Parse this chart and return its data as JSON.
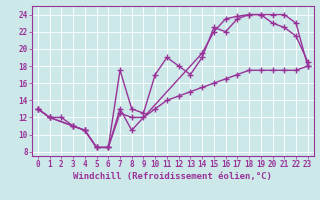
{
  "xlabel": "Windchill (Refroidissement éolien,°C)",
  "ylabel": "",
  "background_color": "#cce8e8",
  "line_color": "#993399",
  "xlim": [
    -0.5,
    23.5
  ],
  "ylim": [
    7.5,
    25
  ],
  "xticks": [
    0,
    1,
    2,
    3,
    4,
    5,
    6,
    7,
    8,
    9,
    10,
    11,
    12,
    13,
    14,
    15,
    16,
    17,
    18,
    19,
    20,
    21,
    22,
    23
  ],
  "yticks": [
    8,
    10,
    12,
    14,
    16,
    18,
    20,
    22,
    24
  ],
  "line1_x": [
    0,
    1,
    3,
    4,
    5,
    6,
    7,
    8,
    14,
    15,
    16,
    17,
    18,
    19,
    20,
    21,
    22,
    23
  ],
  "line1_y": [
    13,
    12,
    11,
    10.5,
    8.5,
    8.5,
    13,
    10.5,
    19.5,
    22,
    23.5,
    23.8,
    24,
    24,
    24,
    24,
    23,
    18
  ],
  "line2_x": [
    0,
    1,
    3,
    4,
    5,
    6,
    7,
    8,
    9,
    10,
    11,
    12,
    13,
    14,
    15,
    16,
    17,
    18,
    19,
    20,
    21,
    22,
    23
  ],
  "line2_y": [
    13,
    12,
    11,
    10.5,
    8.5,
    8.5,
    17.5,
    13,
    12.5,
    17,
    19,
    18,
    17,
    19,
    22.5,
    22,
    23.5,
    24,
    24,
    23,
    22.5,
    21.5,
    18.5
  ],
  "line3_x": [
    0,
    1,
    2,
    3,
    4,
    5,
    6,
    7,
    8,
    9,
    10,
    11,
    12,
    13,
    14,
    15,
    16,
    17,
    18,
    19,
    20,
    21,
    22,
    23
  ],
  "line3_y": [
    13,
    12,
    12,
    11,
    10.5,
    8.5,
    8.5,
    12.5,
    12,
    12,
    13,
    14,
    14.5,
    15,
    15.5,
    16,
    16.5,
    17,
    17.5,
    17.5,
    17.5,
    17.5,
    17.5,
    18
  ],
  "marker": "+",
  "markersize": 4,
  "linewidth": 1.0,
  "tick_fontsize": 5.5,
  "xlabel_fontsize": 6.5
}
